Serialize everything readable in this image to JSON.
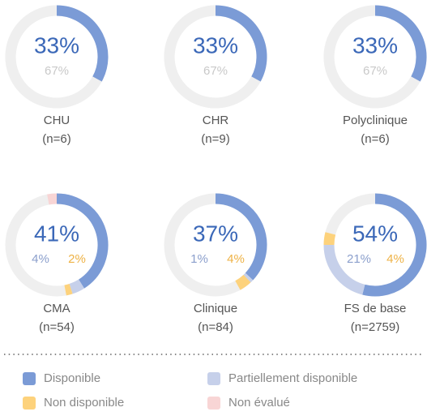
{
  "chart_data": {
    "type": "donut",
    "categories": [
      "CHU",
      "CHR",
      "Polyclinique",
      "CMA",
      "Clinique",
      "FS de base"
    ],
    "sample_sizes": [
      "(n=6)",
      "(n=9)",
      "(n=6)",
      "(n=54)",
      "(n=84)",
      "(n=2759)"
    ],
    "series": [
      {
        "name": "Disponible",
        "color": "#7b9bd6",
        "text_color": "#3b68b8",
        "values": [
          33,
          33,
          33,
          41,
          37,
          54
        ],
        "value_labels": [
          "33%",
          "33%",
          "33%",
          "41%",
          "37%",
          "54%"
        ]
      },
      {
        "name": "Partiellement disponible",
        "color": "#c6d0ea",
        "text_color": "#8b9fcc",
        "values": [
          null,
          null,
          null,
          4,
          1,
          21
        ],
        "value_labels": [
          null,
          null,
          null,
          "4%",
          "1%",
          "21%"
        ]
      },
      {
        "name": "Non disponible",
        "color": "#fdd27c",
        "text_color": "#eeb245",
        "values": [
          null,
          null,
          null,
          2,
          4,
          4
        ],
        "value_labels": [
          null,
          null,
          null,
          "2%",
          "4%",
          "4%"
        ]
      },
      {
        "name": "Non évalué",
        "color": "#f8d5d5",
        "text_color": "#e9a0a0",
        "values": [
          null,
          null,
          null,
          3,
          null,
          null
        ],
        "value_labels": [
          null,
          null,
          null,
          null,
          null,
          null
        ]
      }
    ],
    "remainder_values": [
      67,
      67,
      67,
      null,
      null,
      null
    ],
    "remainder_labels": [
      "67%",
      "67%",
      "67%",
      null,
      null,
      null
    ],
    "remainder_color": "#c9c9c9"
  }
}
